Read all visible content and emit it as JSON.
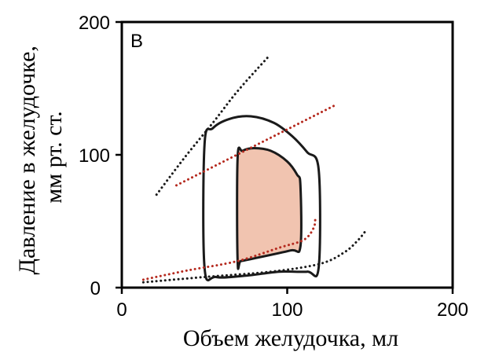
{
  "chart_data": {
    "type": "line",
    "panel_label": "B",
    "xlabel": "Объем желудочка, мл",
    "ylabel_lines": [
      "Давление в желудочке,",
      "мм рт. ст."
    ],
    "xlim": [
      0,
      200
    ],
    "ylim": [
      0,
      200
    ],
    "xticks": [
      "0",
      "100",
      "200"
    ],
    "yticks": [
      "0",
      "100",
      "200"
    ],
    "grid": false,
    "colors": {
      "loop_stroke": "#1a1a1a",
      "loop_fill": "#f1c4b0",
      "curve_black": "#1a1a1a",
      "curve_red": "#b52a1f"
    },
    "series": [
      {
        "style": "solid",
        "color_key": "loop_stroke",
        "closed": true,
        "points": [
          [
            57,
            8
          ],
          [
            50,
            15
          ],
          [
            50,
            108
          ],
          [
            55,
            120
          ],
          [
            65,
            127
          ],
          [
            78,
            129
          ],
          [
            92,
            124
          ],
          [
            103,
            114
          ],
          [
            112,
            102
          ],
          [
            119,
            89
          ],
          [
            119,
            15
          ],
          [
            112,
            12
          ],
          [
            95,
            12
          ],
          [
            75,
            9
          ]
        ]
      },
      {
        "style": "solid-filled",
        "color_key": "loop_stroke",
        "fill_key": "loop_fill",
        "closed": true,
        "points": [
          [
            70,
            20
          ],
          [
            70,
            98
          ],
          [
            73,
            103
          ],
          [
            80,
            105
          ],
          [
            90,
            103
          ],
          [
            100,
            95
          ],
          [
            106,
            85
          ],
          [
            108,
            77
          ],
          [
            108,
            31
          ],
          [
            102,
            28
          ],
          [
            80,
            22
          ],
          [
            72,
            20
          ]
        ]
      },
      {
        "style": "dotted",
        "color_key": "curve_black",
        "points": [
          [
            21,
            70
          ],
          [
            38,
            98
          ],
          [
            55,
            124
          ],
          [
            70,
            148
          ],
          [
            88,
            173
          ]
        ]
      },
      {
        "style": "dotted",
        "color_key": "curve_red",
        "points": [
          [
            33,
            77
          ],
          [
            130,
            138
          ]
        ]
      },
      {
        "style": "dotted",
        "color_key": "curve_black",
        "points": [
          [
            13,
            4
          ],
          [
            50,
            8
          ],
          [
            90,
            12
          ],
          [
            120,
            18
          ],
          [
            135,
            27
          ],
          [
            143,
            36
          ],
          [
            147,
            42
          ]
        ]
      },
      {
        "style": "dotted",
        "color_key": "curve_red",
        "points": [
          [
            13,
            6
          ],
          [
            40,
            13
          ],
          [
            70,
            20
          ],
          [
            95,
            30
          ],
          [
            110,
            36
          ],
          [
            116,
            45
          ],
          [
            117,
            53
          ]
        ]
      }
    ]
  }
}
